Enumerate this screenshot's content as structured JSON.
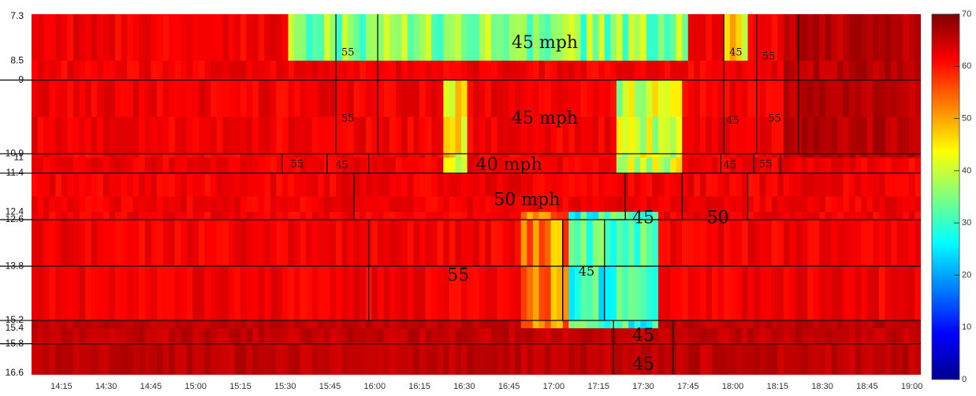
{
  "chart_data": {
    "type": "heatmap",
    "x_ticks": [
      "14:15",
      "14:30",
      "14:45",
      "15:00",
      "15:15",
      "15:30",
      "15:45",
      "16:00",
      "16:15",
      "16:30",
      "16:45",
      "17:00",
      "17:15",
      "17:30",
      "17:45",
      "18:00",
      "18:15",
      "18:30",
      "18:45",
      "19:00"
    ],
    "x_range": [
      "14:05",
      "19:03"
    ],
    "y_ticks": [
      "7.3",
      "8.5",
      "9",
      "10.9",
      "11",
      "11.4",
      "12.4",
      "12.6",
      "13.8",
      "15.2",
      "15.4",
      "15.8",
      "16.6"
    ],
    "y_range": [
      7.3,
      16.6
    ],
    "colorbar": {
      "min": 0,
      "max": 70,
      "ticks": [
        "0",
        "10",
        "20",
        "30",
        "40",
        "50",
        "60",
        "70"
      ],
      "colormap": "jet"
    },
    "boundaries_y": [
      9,
      10.9,
      11.4,
      12.6,
      13.8,
      15.2,
      15.8
    ],
    "speed_limit_segments": [
      {
        "y_range": [
          7.3,
          10.9
        ],
        "t_range": [
          "15:47",
          "16:01"
        ]
      },
      {
        "y_range": [
          7.3,
          10.9
        ],
        "t_range": [
          "17:57",
          "18:08"
        ]
      },
      {
        "y_range": [
          7.3,
          10.9
        ],
        "t_range": [
          "18:08",
          "18:22"
        ]
      },
      {
        "y_range": [
          10.9,
          11.4
        ],
        "t_range": [
          "15:29",
          "15:44"
        ]
      },
      {
        "y_range": [
          10.9,
          11.4
        ],
        "t_range": [
          "15:44",
          "15:58"
        ]
      },
      {
        "y_range": [
          10.9,
          11.4
        ],
        "t_range": [
          "17:56",
          "18:07"
        ]
      },
      {
        "y_range": [
          10.9,
          11.4
        ],
        "t_range": [
          "18:07",
          "18:16"
        ]
      },
      {
        "y_range": [
          11.4,
          12.6
        ],
        "t_range": [
          "15:53",
          "17:24"
        ]
      },
      {
        "y_range": [
          11.4,
          12.6
        ],
        "t_range": [
          "17:24",
          "17:43"
        ]
      },
      {
        "y_range": [
          11.4,
          12.6
        ],
        "t_range": [
          "17:43",
          "18:05"
        ]
      },
      {
        "y_range": [
          12.6,
          15.2
        ],
        "t_range": [
          "15:58",
          "17:03"
        ]
      },
      {
        "y_range": [
          12.6,
          15.2
        ],
        "t_range": [
          "17:03",
          "17:17"
        ]
      },
      {
        "y_range": [
          15.2,
          16.6
        ],
        "t_range": [
          "17:20",
          "17:40"
        ]
      }
    ],
    "annotations": [
      {
        "text": "55",
        "t": "15:51",
        "y": 8.3,
        "size": "small"
      },
      {
        "text": "45 mph",
        "t": "16:57",
        "y": 8.05,
        "size": "big"
      },
      {
        "text": "45",
        "t": "18:01",
        "y": 8.3,
        "size": "small"
      },
      {
        "text": "55",
        "t": "18:12",
        "y": 8.4,
        "size": "small"
      },
      {
        "text": "55",
        "t": "15:51",
        "y": 10.0,
        "size": "small"
      },
      {
        "text": "45 mph",
        "t": "16:57",
        "y": 10.0,
        "size": "big"
      },
      {
        "text": "45",
        "t": "18:00",
        "y": 10.05,
        "size": "small"
      },
      {
        "text": "55",
        "t": "18:14",
        "y": 10.0,
        "size": "small"
      },
      {
        "text": "55",
        "t": "15:34",
        "y": 11.18,
        "size": "small"
      },
      {
        "text": "45",
        "t": "15:49",
        "y": 11.2,
        "size": "small"
      },
      {
        "text": "40 mph",
        "t": "16:45",
        "y": 11.2,
        "size": "big"
      },
      {
        "text": "45",
        "t": "17:59",
        "y": 11.2,
        "size": "small"
      },
      {
        "text": "55",
        "t": "18:11",
        "y": 11.18,
        "size": "small"
      },
      {
        "text": "50 mph",
        "t": "16:51",
        "y": 12.1,
        "size": "big"
      },
      {
        "text": "45",
        "t": "17:30",
        "y": 12.57,
        "size": "big"
      },
      {
        "text": "50",
        "t": "17:55",
        "y": 12.57,
        "size": "big"
      },
      {
        "text": "55",
        "t": "16:28",
        "y": 14.05,
        "size": "big"
      },
      {
        "text": "45",
        "t": "17:11",
        "y": 13.95,
        "size": "medium"
      },
      {
        "text": "45",
        "t": "17:30",
        "y": 15.6,
        "size": "big"
      },
      {
        "text": "45",
        "t": "17:30",
        "y": 16.35,
        "size": "big"
      }
    ],
    "congestion_regions": [
      {
        "y_range": [
          7.3,
          8.5
        ],
        "t_range": [
          "15:30",
          "17:45"
        ],
        "speed": 35
      },
      {
        "y_range": [
          7.3,
          8.5
        ],
        "t_range": [
          "17:57",
          "18:05"
        ],
        "speed": 45
      },
      {
        "y_range": [
          9,
          11.4
        ],
        "t_range": [
          "16:22",
          "16:30"
        ],
        "speed": 45
      },
      {
        "y_range": [
          9,
          11.4
        ],
        "t_range": [
          "17:20",
          "17:42"
        ],
        "speed": 40
      },
      {
        "y_range": [
          12.4,
          15.4
        ],
        "t_range": [
          "16:48",
          "17:05"
        ],
        "speed": 52
      },
      {
        "y_range": [
          12.4,
          15.4
        ],
        "t_range": [
          "17:05",
          "17:35"
        ],
        "speed": 30
      }
    ]
  }
}
